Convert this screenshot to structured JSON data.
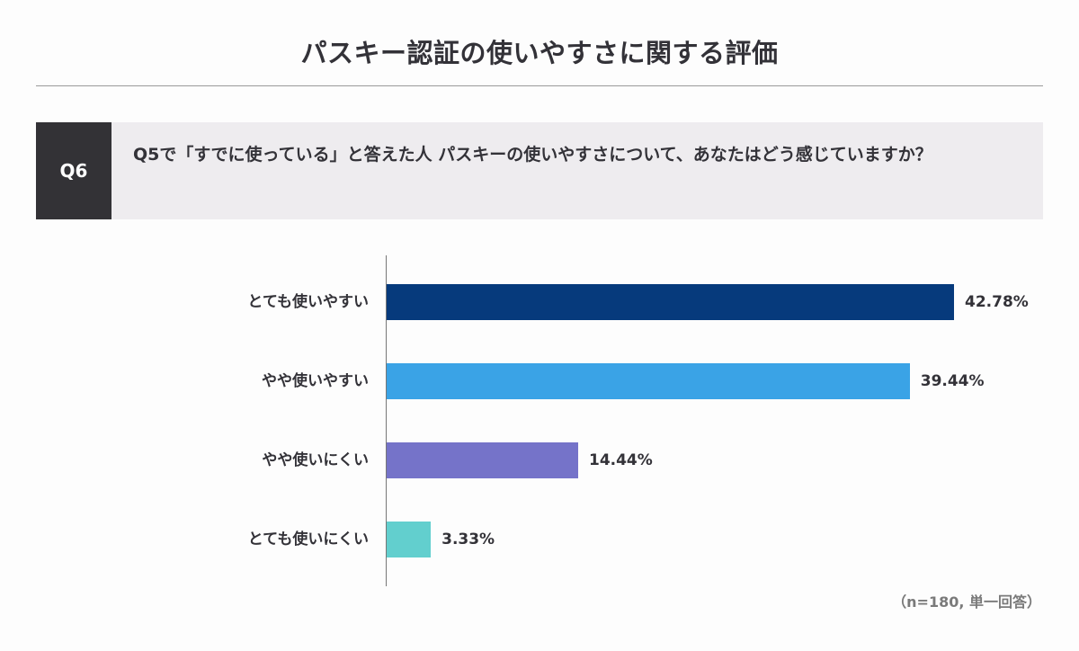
{
  "title": "パスキー認証の使いやすさに関する評価",
  "question": {
    "badge": "Q6",
    "text": "Q5で「すでに使っている」と答えた人 パスキーの使いやすさについて、あなたはどう感じていますか？"
  },
  "note": "（n=180, 単一回答）",
  "chart_data": {
    "type": "bar",
    "orientation": "horizontal",
    "title": "パスキー認証の使いやすさに関する評価",
    "categories": [
      "とても使いやすい",
      "やや使いやすい",
      "やや使いにくい",
      "とても使いにくい"
    ],
    "values": [
      42.78,
      39.44,
      14.44,
      3.33
    ],
    "value_labels": [
      "42.78%",
      "39.44%",
      "14.44%",
      "3.33%"
    ],
    "colors": [
      "#063a7c",
      "#3aa3e6",
      "#7573c9",
      "#62cfce"
    ],
    "xlabel": "",
    "ylabel": "",
    "unit": "%",
    "grid": false,
    "legend": "none",
    "sample_note": "（n=180, 単一回答）"
  }
}
